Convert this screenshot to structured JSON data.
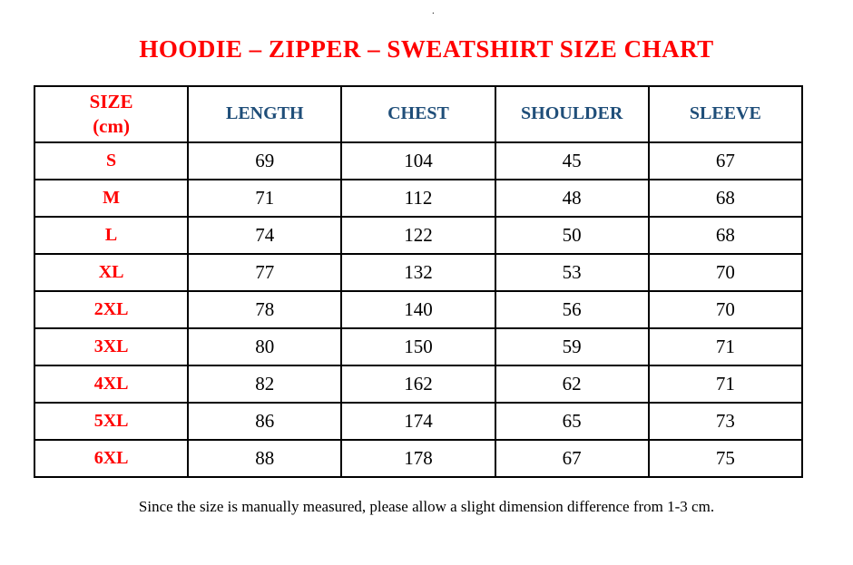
{
  "stray_mark": ".",
  "title": "HOODIE – ZIPPER – SWEATSHIRT SIZE CHART",
  "colors": {
    "red": "#ff0000",
    "blue": "#1f4e79",
    "ink": "#000000",
    "bg": "#ffffff"
  },
  "table": {
    "headers": {
      "size": "SIZE\n(cm)",
      "length": "LENGTH",
      "chest": "CHEST",
      "shoulder": "SHOULDER",
      "sleeve": "SLEEVE"
    },
    "rows": [
      {
        "size": "S",
        "length": "69",
        "chest": "104",
        "shoulder": "45",
        "sleeve": "67"
      },
      {
        "size": "M",
        "length": "71",
        "chest": "112",
        "shoulder": "48",
        "sleeve": "68"
      },
      {
        "size": "L",
        "length": "74",
        "chest": "122",
        "shoulder": "50",
        "sleeve": "68"
      },
      {
        "size": "XL",
        "length": "77",
        "chest": "132",
        "shoulder": "53",
        "sleeve": "70"
      },
      {
        "size": "2XL",
        "length": "78",
        "chest": "140",
        "shoulder": "56",
        "sleeve": "70"
      },
      {
        "size": "3XL",
        "length": "80",
        "chest": "150",
        "shoulder": "59",
        "sleeve": "71"
      },
      {
        "size": "4XL",
        "length": "82",
        "chest": "162",
        "shoulder": "62",
        "sleeve": "71"
      },
      {
        "size": "5XL",
        "length": "86",
        "chest": "174",
        "shoulder": "65",
        "sleeve": "73"
      },
      {
        "size": "6XL",
        "length": "88",
        "chest": "178",
        "shoulder": "67",
        "sleeve": "75"
      }
    ]
  },
  "footnote": "Since the size is manually measured, please allow a slight dimension difference from 1-3 cm."
}
